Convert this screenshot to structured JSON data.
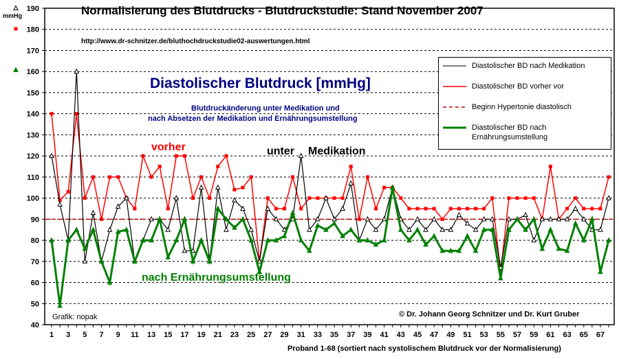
{
  "chart_data": {
    "type": "line",
    "title": "Normalisierung des Blutdrucks - Blutdruckstudie: Stand November 2007",
    "url": "http://www.dr-schnitzer.de/bluthochdruckstudie02-auswertungen.html",
    "subtitle": "Diastolischer Blutdruck [mmHg]",
    "subtitle2": "Blutdruckänderung unter Medikation und",
    "subtitle3": "nach Absetzen der Medikation und Ernährungsumstellung",
    "ylabel": "mmHg",
    "xlabel": "Proband 1-68  (sortiert nach systolischem Blutdruck vor der Normalisierung)",
    "ylim": [
      40,
      190
    ],
    "yticks": [
      40,
      50,
      60,
      70,
      80,
      90,
      100,
      110,
      120,
      130,
      140,
      150,
      160,
      170,
      180,
      190
    ],
    "xticks": [
      1,
      3,
      5,
      7,
      9,
      11,
      13,
      15,
      17,
      19,
      21,
      23,
      25,
      27,
      29,
      31,
      33,
      35,
      37,
      39,
      41,
      43,
      45,
      47,
      49,
      51,
      53,
      55,
      57,
      59,
      61,
      63,
      65,
      67
    ],
    "grid": true,
    "legend_position": "top-right",
    "annotations": {
      "vorher": "vorher",
      "unter": "unter",
      "medikation": "Medikation",
      "nach": "nach Ernährungsumstellung",
      "grafik": "Grafik: nopak",
      "copyright": "© Dr. Johann Georg Schnitzer und Dr. Kurt Gruber"
    },
    "hypertension_threshold": 90,
    "series": [
      {
        "name": "Diastolischer BD nach Medikation",
        "color": "#000000",
        "values": [
          120,
          97,
          80,
          160,
          70,
          93,
          70,
          85,
          96,
          100,
          70,
          80,
          90,
          90,
          85,
          100,
          75,
          75,
          105,
          70,
          105,
          85,
          99,
          95,
          85,
          70,
          95,
          90,
          85,
          90,
          120,
          85,
          90,
          100,
          90,
          95,
          107,
          80,
          90,
          85,
          90,
          105,
          90,
          85,
          90,
          85,
          90,
          85,
          85,
          92,
          88,
          85,
          90,
          90,
          67,
          90,
          90,
          92,
          80,
          90,
          90,
          90,
          90,
          95,
          90,
          85,
          85,
          100
        ]
      },
      {
        "name": "Diastolischer BD vorher vor",
        "color": "#ff0000",
        "values": [
          140,
          99,
          103,
          140,
          100,
          110,
          90,
          110,
          110,
          100,
          95,
          120,
          110,
          115,
          95,
          120,
          120,
          100,
          110,
          100,
          115,
          120,
          104,
          105,
          110,
          70,
          100,
          95,
          95,
          110,
          95,
          100,
          100,
          100,
          100,
          100,
          115,
          90,
          110,
          95,
          105,
          105,
          100,
          95,
          95,
          95,
          95,
          90,
          95,
          95,
          95,
          95,
          95,
          100,
          65,
          100,
          100,
          100,
          100,
          90,
          115,
          90,
          95,
          100,
          95,
          95,
          95,
          110
        ]
      },
      {
        "name": "Beginn Hypertonie diastolisch",
        "color": "#cc0000"
      },
      {
        "name": "Diastolischer BD nach Ernährungsumstellung",
        "color": "#008000",
        "values": [
          80,
          49,
          80,
          85,
          76,
          85,
          70,
          60,
          84,
          85,
          70,
          80,
          80,
          90,
          72,
          80,
          90,
          70,
          80,
          70,
          95,
          90,
          86,
          90,
          80,
          65,
          80,
          80,
          82,
          93,
          80,
          75,
          87,
          85,
          88,
          82,
          85,
          80,
          80,
          78,
          80,
          105,
          85,
          80,
          85,
          78,
          82,
          75,
          75,
          75,
          82,
          75,
          85,
          85,
          62,
          85,
          90,
          85,
          90,
          76,
          85,
          76,
          75,
          88,
          80,
          90,
          65,
          80
        ]
      }
    ]
  }
}
